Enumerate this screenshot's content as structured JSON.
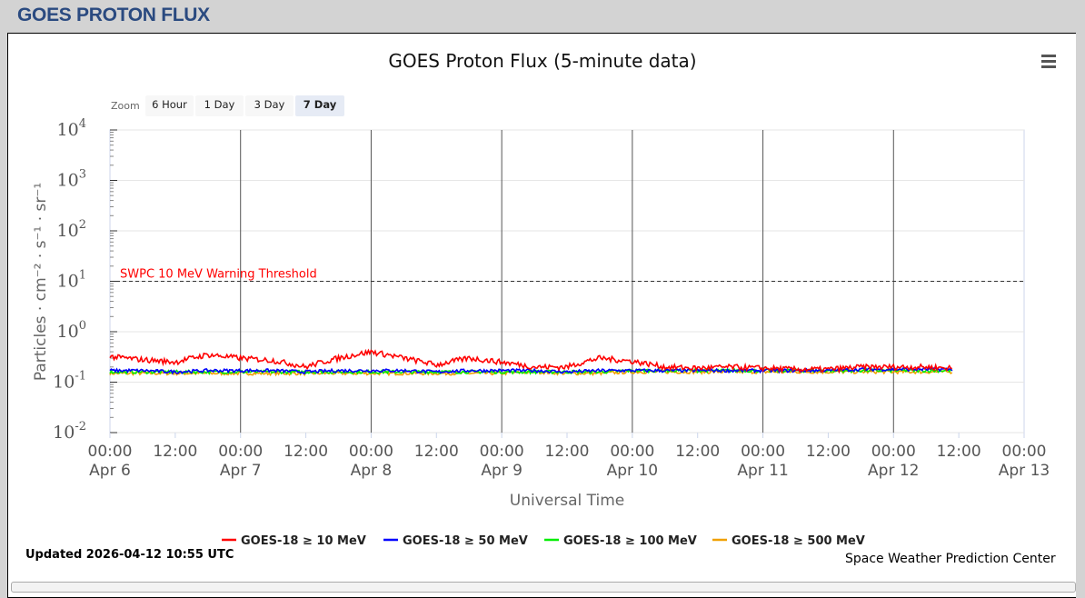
{
  "header": {
    "title": "GOES PROTON FLUX"
  },
  "zoom": {
    "label": "Zoom",
    "buttons": [
      "6 Hour",
      "1 Day",
      "3 Day",
      "7 Day"
    ],
    "selected": "7 Day"
  },
  "footer": {
    "updated": "Updated 2026-04-12 10:55 UTC",
    "credit": "Space Weather Prediction Center"
  },
  "chart_data": {
    "type": "line",
    "title": "GOES Proton Flux (5-minute data)",
    "xlabel": "Universal Time",
    "ylabel": "Particles · cm⁻² · s⁻¹ · sr⁻¹",
    "yscale": "log",
    "ylim": [
      0.01,
      10000
    ],
    "yticks": [
      {
        "base": "10",
        "exp": "-2"
      },
      {
        "base": "10",
        "exp": "-1"
      },
      {
        "base": "10",
        "exp": "0"
      },
      {
        "base": "10",
        "exp": "1"
      },
      {
        "base": "10",
        "exp": "2"
      },
      {
        "base": "10",
        "exp": "3"
      },
      {
        "base": "10",
        "exp": "4"
      }
    ],
    "xlim_hours": [
      0,
      168
    ],
    "xticks": [
      {
        "t": "00:00",
        "d": "Apr 6"
      },
      {
        "t": "12:00",
        "d": ""
      },
      {
        "t": "00:00",
        "d": "Apr 7"
      },
      {
        "t": "12:00",
        "d": ""
      },
      {
        "t": "00:00",
        "d": "Apr 8"
      },
      {
        "t": "12:00",
        "d": ""
      },
      {
        "t": "00:00",
        "d": "Apr 9"
      },
      {
        "t": "12:00",
        "d": ""
      },
      {
        "t": "00:00",
        "d": "Apr 10"
      },
      {
        "t": "12:00",
        "d": ""
      },
      {
        "t": "00:00",
        "d": "Apr 11"
      },
      {
        "t": "12:00",
        "d": ""
      },
      {
        "t": "00:00",
        "d": "Apr 12"
      },
      {
        "t": "12:00",
        "d": ""
      },
      {
        "t": "00:00",
        "d": "Apr 13"
      }
    ],
    "threshold": {
      "value": 10,
      "label": "SWPC 10 MeV Warning Threshold",
      "color": "#ff0000"
    },
    "x_hours": [
      0,
      6,
      12,
      18,
      24,
      30,
      36,
      42,
      48,
      54,
      60,
      66,
      72,
      78,
      84,
      90,
      96,
      102,
      108,
      114,
      120,
      126,
      132,
      138,
      144,
      150,
      154.9
    ],
    "series": [
      {
        "name": "GOES-18 ≥ 10 MeV",
        "color": "#ff0000",
        "values": [
          0.32,
          0.28,
          0.25,
          0.35,
          0.3,
          0.27,
          0.2,
          0.3,
          0.4,
          0.3,
          0.22,
          0.3,
          0.25,
          0.2,
          0.2,
          0.3,
          0.26,
          0.2,
          0.19,
          0.2,
          0.19,
          0.18,
          0.18,
          0.2,
          0.2,
          0.2,
          0.19
        ]
      },
      {
        "name": "GOES-18 ≥ 50 MeV",
        "color": "#0000ff",
        "values": [
          0.17,
          0.17,
          0.16,
          0.17,
          0.17,
          0.17,
          0.16,
          0.17,
          0.17,
          0.17,
          0.16,
          0.17,
          0.17,
          0.17,
          0.16,
          0.17,
          0.17,
          0.17,
          0.17,
          0.17,
          0.17,
          0.17,
          0.17,
          0.18,
          0.18,
          0.18,
          0.18
        ]
      },
      {
        "name": "GOES-18 ≥ 100 MeV",
        "color": "#00ee00",
        "values": [
          0.16,
          0.16,
          0.16,
          0.16,
          0.16,
          0.16,
          0.16,
          0.16,
          0.16,
          0.16,
          0.16,
          0.16,
          0.16,
          0.16,
          0.16,
          0.16,
          0.17,
          0.17,
          0.17,
          0.17,
          0.17,
          0.17,
          0.17,
          0.17,
          0.17,
          0.17,
          0.17
        ]
      },
      {
        "name": "GOES-18 ≥ 500 MeV",
        "color": "#f0a000",
        "values": [
          0.15,
          0.15,
          0.15,
          0.15,
          0.15,
          0.15,
          0.15,
          0.15,
          0.15,
          0.15,
          0.15,
          0.15,
          0.15,
          0.16,
          0.15,
          0.15,
          0.16,
          0.16,
          0.16,
          0.16,
          0.16,
          0.16,
          0.16,
          0.16,
          0.16,
          0.16,
          0.16
        ]
      }
    ],
    "grid": true,
    "legend": "bottom-center"
  }
}
